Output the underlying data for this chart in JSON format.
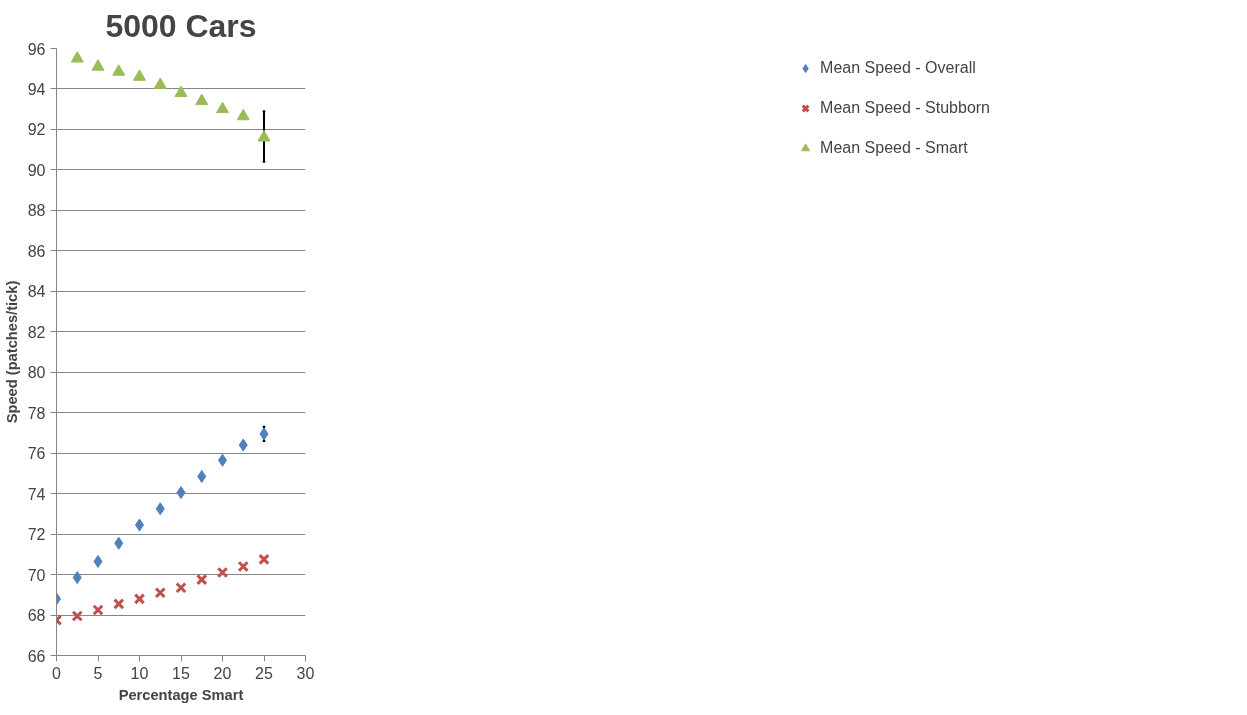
{
  "chart_data": {
    "type": "scatter",
    "title": "5000 Cars",
    "xlabel": "Percentage Smart",
    "ylabel": "Speed (patches/tick)",
    "xlim": [
      0,
      30
    ],
    "xticks": [
      0,
      5,
      10,
      15,
      20,
      25,
      30
    ],
    "ylim": [
      66,
      96
    ],
    "yticks": [
      66,
      68,
      70,
      72,
      74,
      76,
      78,
      80,
      82,
      84,
      86,
      88,
      90,
      92,
      94,
      96
    ],
    "grid": "y",
    "legend": "right",
    "series": [
      {
        "name": "Mean Speed - Overall",
        "color": "#4f81bd",
        "marker": "diamond",
        "x": [
          0,
          2.5,
          5,
          7.5,
          10,
          12.5,
          15,
          17.5,
          20,
          22.5,
          25
        ],
        "values": [
          68.8,
          69.85,
          70.65,
          71.55,
          72.45,
          73.25,
          74.05,
          74.85,
          75.65,
          76.4,
          76.95
        ],
        "errors": [
          null,
          null,
          null,
          null,
          null,
          null,
          null,
          null,
          null,
          null,
          [
            76.6,
            77.3
          ]
        ]
      },
      {
        "name": "Mean Speed - Stubborn",
        "color": "#c0504d",
        "marker": "cross",
        "x": [
          0,
          2.5,
          5,
          7.5,
          10,
          12.5,
          15,
          17.5,
          20,
          22.5,
          25
        ],
        "values": [
          67.75,
          67.95,
          68.25,
          68.55,
          68.8,
          69.1,
          69.35,
          69.75,
          70.1,
          70.4,
          70.75
        ]
      },
      {
        "name": "Mean Speed - Smart",
        "color": "#9bbb59",
        "marker": "triangle",
        "x": [
          2.5,
          5,
          7.5,
          10,
          12.5,
          15,
          17.5,
          20,
          22.5,
          25
        ],
        "values": [
          95.5,
          95.1,
          94.85,
          94.6,
          94.2,
          93.8,
          93.4,
          93.0,
          92.65,
          91.6
        ],
        "errors": [
          null,
          null,
          null,
          null,
          null,
          null,
          null,
          null,
          null,
          [
            90.4,
            92.9
          ]
        ]
      }
    ]
  }
}
